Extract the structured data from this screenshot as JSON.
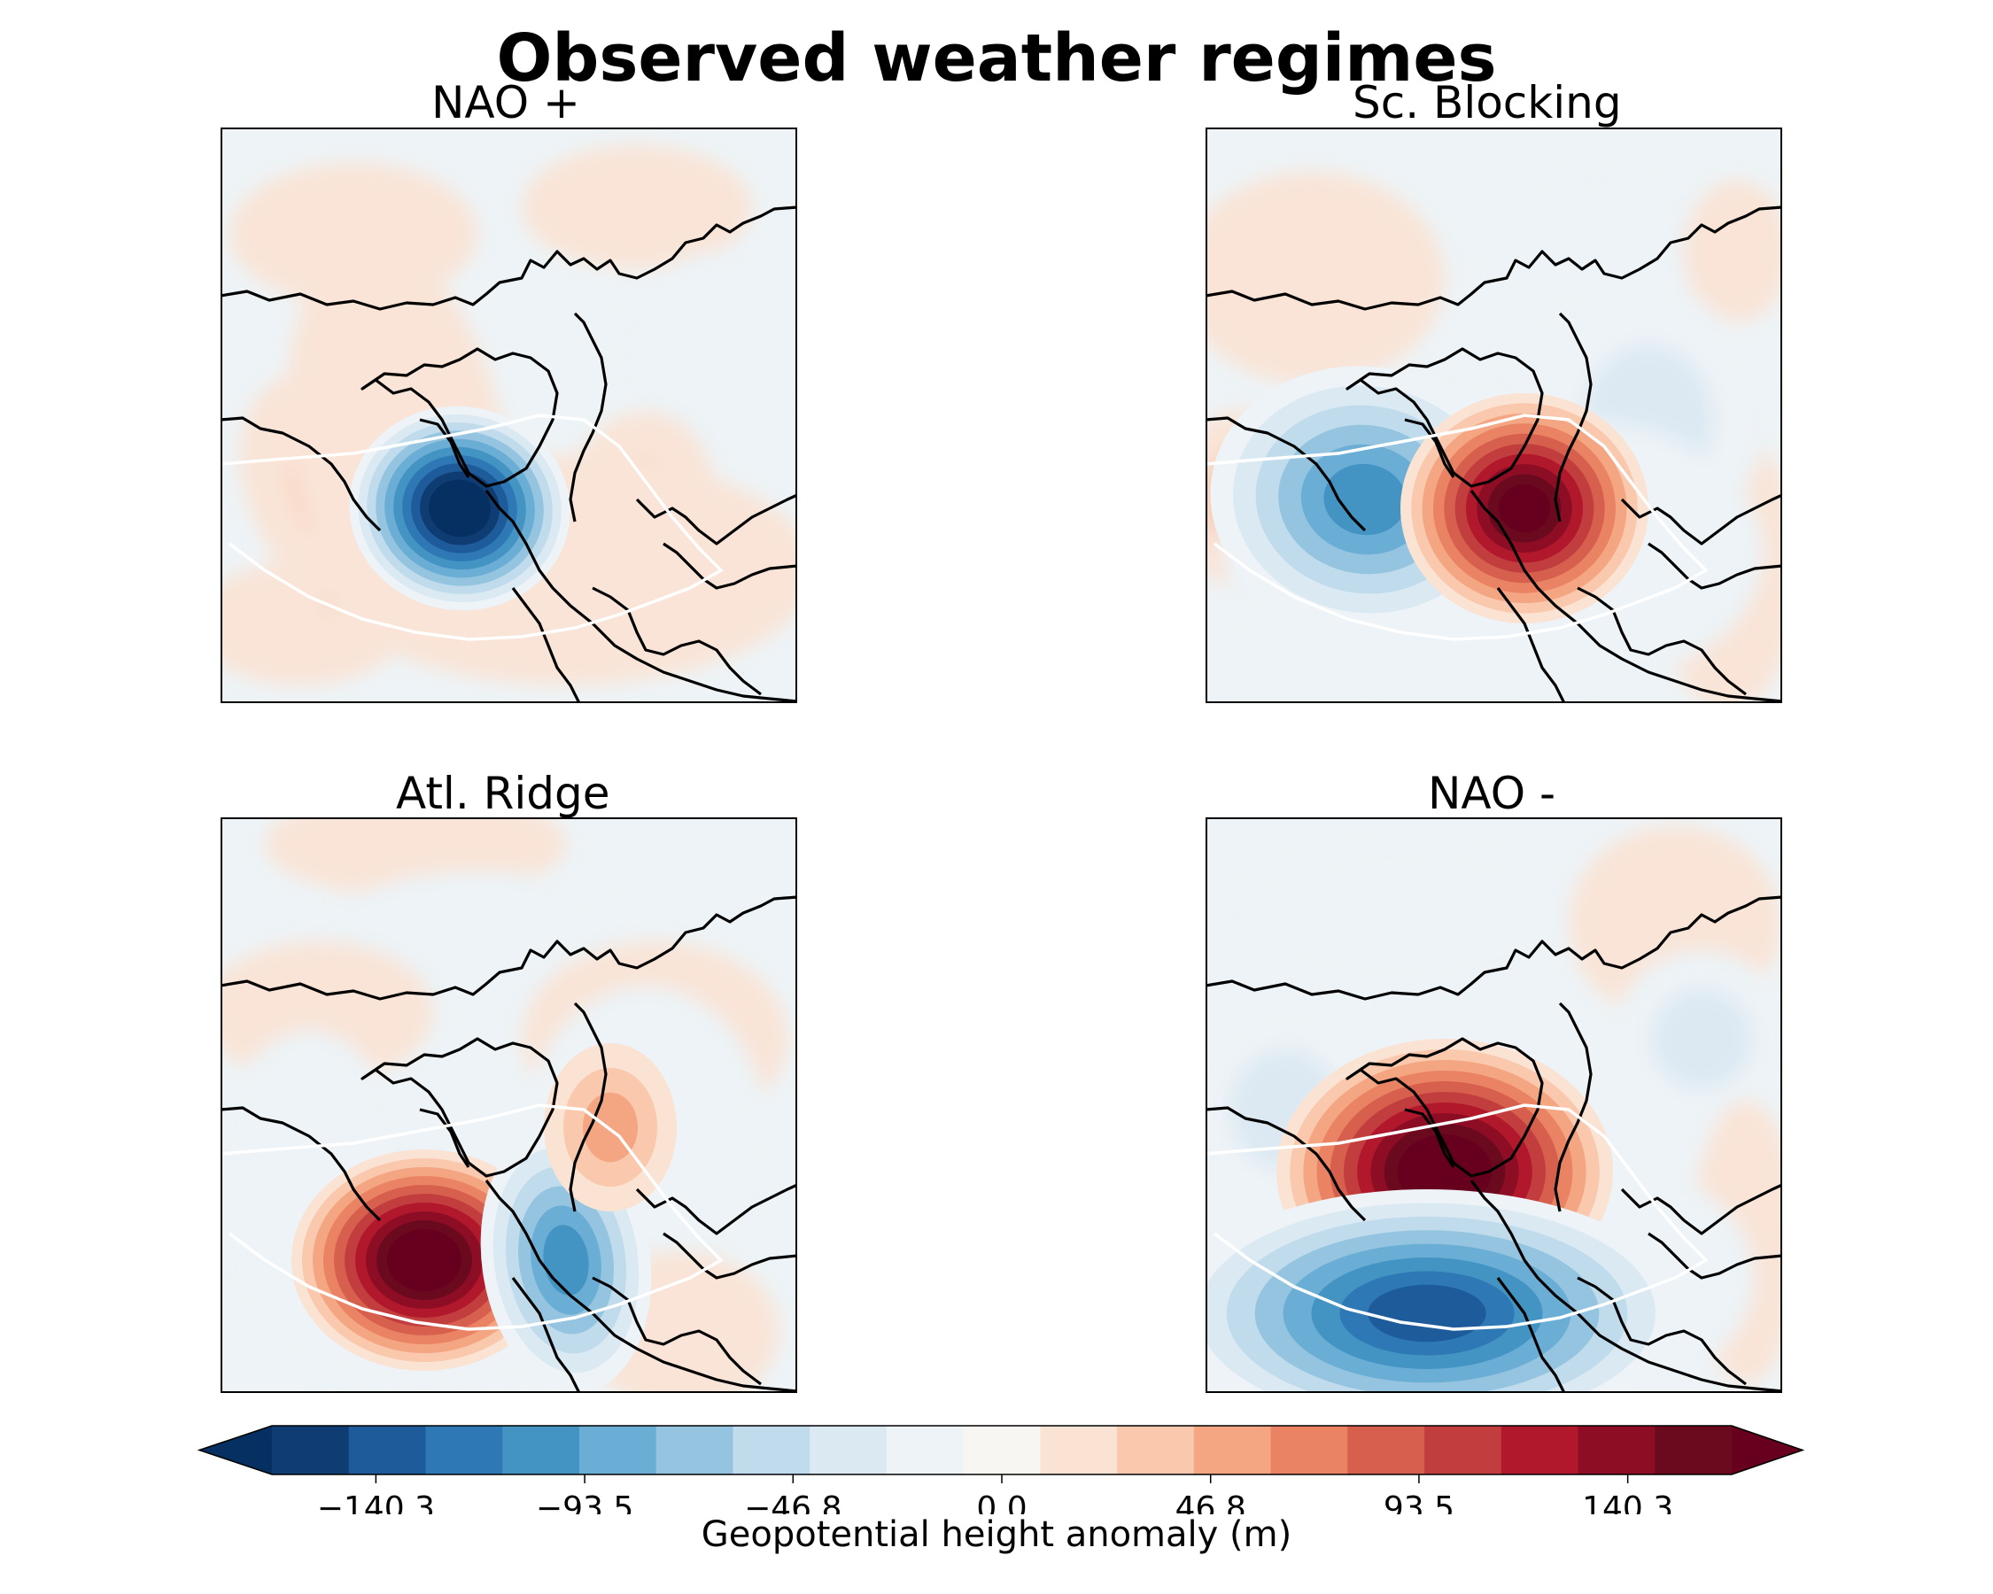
{
  "chart_data": {
    "type": "heatmap",
    "title": "Observed weather regimes",
    "colormap": "RdBu_r",
    "colorbar": {
      "label": "Geopotential height anomaly (m)",
      "ticks": [
        -140.3,
        -93.5,
        -46.8,
        0.0,
        46.8,
        93.5,
        140.3
      ],
      "tick_labels": [
        "−140.3",
        "−93.5",
        "−46.8",
        "0.0",
        "46.8",
        "93.5",
        "140.3"
      ],
      "vmin": -163.6,
      "vmax": 163.6,
      "levels": 21,
      "extend": "both"
    },
    "colors": [
      "#053061",
      "#0f3d73",
      "#1d5b9b",
      "#2e79b5",
      "#4393c3",
      "#6aaed6",
      "#94c4df",
      "#bfdbec",
      "#dbe9f3",
      "#edf3f6",
      "#f7f6f3",
      "#fbe3d4",
      "#f9c8ad",
      "#f4a582",
      "#e98363",
      "#d6604d",
      "#c23e3e",
      "#b2182b",
      "#8d0d25",
      "#6b0a1f",
      "#67001f"
    ],
    "panels": [
      {
        "title": "NAO +"
      },
      {
        "title": "Sc. Blocking"
      },
      {
        "title": "Atl. Ridge"
      },
      {
        "title": "NAO -"
      }
    ]
  }
}
